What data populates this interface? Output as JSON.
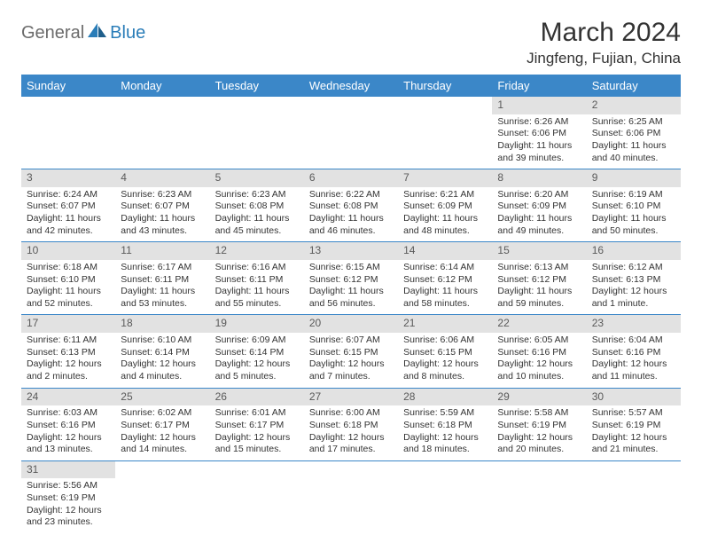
{
  "logo": {
    "part1": "General",
    "part2": "Blue"
  },
  "title": "March 2024",
  "location": "Jingfeng, Fujian, China",
  "colors": {
    "header_bg": "#3b87c8",
    "header_text": "#ffffff",
    "daynum_bg": "#e2e2e2",
    "daynum_text": "#5a5a5a",
    "cell_text": "#333333",
    "rule": "#3b87c8",
    "logo_gray": "#6b6b6b",
    "logo_blue": "#2a7db8"
  },
  "weekdays": [
    "Sunday",
    "Monday",
    "Tuesday",
    "Wednesday",
    "Thursday",
    "Friday",
    "Saturday"
  ],
  "weeks": [
    [
      null,
      null,
      null,
      null,
      null,
      {
        "n": "1",
        "sr": "Sunrise: 6:26 AM",
        "ss": "Sunset: 6:06 PM",
        "dl": "Daylight: 11 hours and 39 minutes."
      },
      {
        "n": "2",
        "sr": "Sunrise: 6:25 AM",
        "ss": "Sunset: 6:06 PM",
        "dl": "Daylight: 11 hours and 40 minutes."
      }
    ],
    [
      {
        "n": "3",
        "sr": "Sunrise: 6:24 AM",
        "ss": "Sunset: 6:07 PM",
        "dl": "Daylight: 11 hours and 42 minutes."
      },
      {
        "n": "4",
        "sr": "Sunrise: 6:23 AM",
        "ss": "Sunset: 6:07 PM",
        "dl": "Daylight: 11 hours and 43 minutes."
      },
      {
        "n": "5",
        "sr": "Sunrise: 6:23 AM",
        "ss": "Sunset: 6:08 PM",
        "dl": "Daylight: 11 hours and 45 minutes."
      },
      {
        "n": "6",
        "sr": "Sunrise: 6:22 AM",
        "ss": "Sunset: 6:08 PM",
        "dl": "Daylight: 11 hours and 46 minutes."
      },
      {
        "n": "7",
        "sr": "Sunrise: 6:21 AM",
        "ss": "Sunset: 6:09 PM",
        "dl": "Daylight: 11 hours and 48 minutes."
      },
      {
        "n": "8",
        "sr": "Sunrise: 6:20 AM",
        "ss": "Sunset: 6:09 PM",
        "dl": "Daylight: 11 hours and 49 minutes."
      },
      {
        "n": "9",
        "sr": "Sunrise: 6:19 AM",
        "ss": "Sunset: 6:10 PM",
        "dl": "Daylight: 11 hours and 50 minutes."
      }
    ],
    [
      {
        "n": "10",
        "sr": "Sunrise: 6:18 AM",
        "ss": "Sunset: 6:10 PM",
        "dl": "Daylight: 11 hours and 52 minutes."
      },
      {
        "n": "11",
        "sr": "Sunrise: 6:17 AM",
        "ss": "Sunset: 6:11 PM",
        "dl": "Daylight: 11 hours and 53 minutes."
      },
      {
        "n": "12",
        "sr": "Sunrise: 6:16 AM",
        "ss": "Sunset: 6:11 PM",
        "dl": "Daylight: 11 hours and 55 minutes."
      },
      {
        "n": "13",
        "sr": "Sunrise: 6:15 AM",
        "ss": "Sunset: 6:12 PM",
        "dl": "Daylight: 11 hours and 56 minutes."
      },
      {
        "n": "14",
        "sr": "Sunrise: 6:14 AM",
        "ss": "Sunset: 6:12 PM",
        "dl": "Daylight: 11 hours and 58 minutes."
      },
      {
        "n": "15",
        "sr": "Sunrise: 6:13 AM",
        "ss": "Sunset: 6:12 PM",
        "dl": "Daylight: 11 hours and 59 minutes."
      },
      {
        "n": "16",
        "sr": "Sunrise: 6:12 AM",
        "ss": "Sunset: 6:13 PM",
        "dl": "Daylight: 12 hours and 1 minute."
      }
    ],
    [
      {
        "n": "17",
        "sr": "Sunrise: 6:11 AM",
        "ss": "Sunset: 6:13 PM",
        "dl": "Daylight: 12 hours and 2 minutes."
      },
      {
        "n": "18",
        "sr": "Sunrise: 6:10 AM",
        "ss": "Sunset: 6:14 PM",
        "dl": "Daylight: 12 hours and 4 minutes."
      },
      {
        "n": "19",
        "sr": "Sunrise: 6:09 AM",
        "ss": "Sunset: 6:14 PM",
        "dl": "Daylight: 12 hours and 5 minutes."
      },
      {
        "n": "20",
        "sr": "Sunrise: 6:07 AM",
        "ss": "Sunset: 6:15 PM",
        "dl": "Daylight: 12 hours and 7 minutes."
      },
      {
        "n": "21",
        "sr": "Sunrise: 6:06 AM",
        "ss": "Sunset: 6:15 PM",
        "dl": "Daylight: 12 hours and 8 minutes."
      },
      {
        "n": "22",
        "sr": "Sunrise: 6:05 AM",
        "ss": "Sunset: 6:16 PM",
        "dl": "Daylight: 12 hours and 10 minutes."
      },
      {
        "n": "23",
        "sr": "Sunrise: 6:04 AM",
        "ss": "Sunset: 6:16 PM",
        "dl": "Daylight: 12 hours and 11 minutes."
      }
    ],
    [
      {
        "n": "24",
        "sr": "Sunrise: 6:03 AM",
        "ss": "Sunset: 6:16 PM",
        "dl": "Daylight: 12 hours and 13 minutes."
      },
      {
        "n": "25",
        "sr": "Sunrise: 6:02 AM",
        "ss": "Sunset: 6:17 PM",
        "dl": "Daylight: 12 hours and 14 minutes."
      },
      {
        "n": "26",
        "sr": "Sunrise: 6:01 AM",
        "ss": "Sunset: 6:17 PM",
        "dl": "Daylight: 12 hours and 15 minutes."
      },
      {
        "n": "27",
        "sr": "Sunrise: 6:00 AM",
        "ss": "Sunset: 6:18 PM",
        "dl": "Daylight: 12 hours and 17 minutes."
      },
      {
        "n": "28",
        "sr": "Sunrise: 5:59 AM",
        "ss": "Sunset: 6:18 PM",
        "dl": "Daylight: 12 hours and 18 minutes."
      },
      {
        "n": "29",
        "sr": "Sunrise: 5:58 AM",
        "ss": "Sunset: 6:19 PM",
        "dl": "Daylight: 12 hours and 20 minutes."
      },
      {
        "n": "30",
        "sr": "Sunrise: 5:57 AM",
        "ss": "Sunset: 6:19 PM",
        "dl": "Daylight: 12 hours and 21 minutes."
      }
    ],
    [
      {
        "n": "31",
        "sr": "Sunrise: 5:56 AM",
        "ss": "Sunset: 6:19 PM",
        "dl": "Daylight: 12 hours and 23 minutes."
      },
      null,
      null,
      null,
      null,
      null,
      null
    ]
  ]
}
